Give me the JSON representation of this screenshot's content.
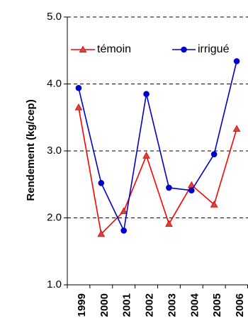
{
  "chart_data": {
    "type": "line",
    "categories": [
      "1999",
      "2000",
      "2001",
      "2002",
      "2003",
      "2004",
      "2005",
      "2006"
    ],
    "series": [
      {
        "name": "témoin",
        "color": "#ff0000",
        "marker": "triangle",
        "marker_fill": "#c0504d",
        "values": [
          3.65,
          1.76,
          2.1,
          2.93,
          1.91,
          2.49,
          2.2,
          3.33
        ]
      },
      {
        "name": "irrigué",
        "color": "#0000cc",
        "marker": "circle",
        "marker_fill": "#0000cc",
        "values": [
          3.94,
          2.52,
          1.81,
          3.85,
          2.45,
          2.41,
          2.95,
          4.34
        ]
      }
    ],
    "ylabel": "Rendement (kg/cep)",
    "xlabel": "",
    "ylim": [
      1.0,
      5.0
    ],
    "yticks": [
      "1.0",
      "2.0",
      "3.0",
      "4.0",
      "5.0"
    ],
    "grid": "horizontal dashed",
    "legend_position": "top"
  }
}
